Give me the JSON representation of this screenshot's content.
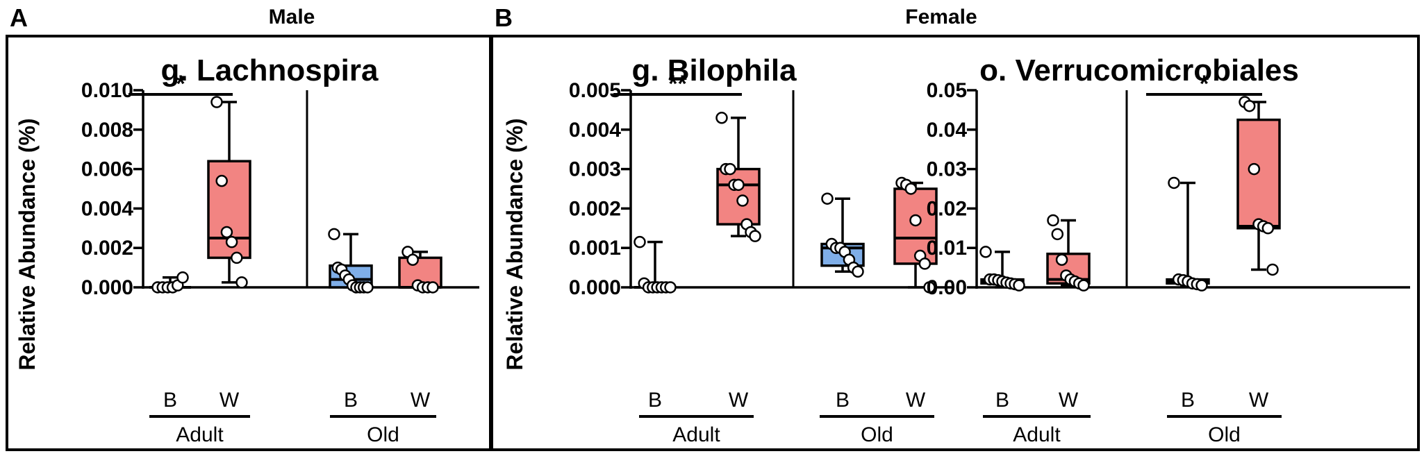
{
  "panels": [
    {
      "letter": "A",
      "group": "Male"
    },
    {
      "letter": "B",
      "group": "Female"
    }
  ],
  "colors": {
    "B": "#7faee8",
    "W": "#f28482",
    "stroke": "#000000"
  },
  "chart_data": [
    {
      "type": "box",
      "title": "g. Lachnospira",
      "ylabel": "Relative Abundance (%)",
      "ylim": [
        0,
        0.01
      ],
      "yticks": [
        "0.000",
        "0.002",
        "0.004",
        "0.006",
        "0.008",
        "0.010"
      ],
      "categories": [
        "B",
        "W"
      ],
      "groups": [
        {
          "name": "Adult",
          "boxes": [
            {
              "category": "B",
              "min": 0.0,
              "q1": 0.0,
              "median": 0.0,
              "q3": 0.0,
              "max": 0.0005,
              "points": [
                0.0,
                0.0,
                0.0,
                0.0,
                0.0001,
                0.0005
              ]
            },
            {
              "category": "W",
              "min": 0.00025,
              "q1": 0.0015,
              "median": 0.0025,
              "q3": 0.0064,
              "max": 0.0094,
              "points": [
                0.0094,
                0.0054,
                0.0028,
                0.0023,
                0.0015,
                0.00025
              ]
            }
          ],
          "significance": [
            {
              "label": "*",
              "from": "B",
              "to": "W"
            }
          ]
        },
        {
          "name": "Old",
          "boxes": [
            {
              "category": "B",
              "min": 0.0,
              "q1": 0.0,
              "median": 0.0004,
              "q3": 0.0011,
              "max": 0.0027,
              "points": [
                0.0027,
                0.001,
                0.0009,
                0.0006,
                0.0004,
                0.0001,
                0.0,
                0.0,
                0.0,
                0.0
              ]
            },
            {
              "category": "W",
              "min": 0.0,
              "q1": 0.0,
              "median": 0.0,
              "q3": 0.0015,
              "max": 0.0018,
              "points": [
                0.0018,
                0.0014,
                0.0001,
                0.0,
                0.0,
                0.0
              ]
            }
          ],
          "significance": []
        }
      ]
    },
    {
      "type": "box",
      "title": "g. Bilophila",
      "ylabel": "Relative Abundance (%)",
      "ylim": [
        0,
        0.005
      ],
      "yticks": [
        "0.000",
        "0.001",
        "0.002",
        "0.003",
        "0.004",
        "0.005"
      ],
      "categories": [
        "B",
        "W"
      ],
      "groups": [
        {
          "name": "Adult",
          "boxes": [
            {
              "category": "B",
              "min": 0.0,
              "q1": 0.0,
              "median": 0.0,
              "q3": 0.0,
              "max": 0.00115,
              "points": [
                0.00115,
                0.0001,
                0.0,
                0.0,
                0.0,
                0.0,
                0.0,
                0.0
              ]
            },
            {
              "category": "W",
              "min": 0.0013,
              "q1": 0.0016,
              "median": 0.0026,
              "q3": 0.003,
              "max": 0.0043,
              "points": [
                0.0043,
                0.003,
                0.003,
                0.0026,
                0.0026,
                0.0022,
                0.0016,
                0.0014,
                0.0013
              ]
            }
          ],
          "significance": [
            {
              "label": "**",
              "from": "B",
              "to": "W"
            }
          ]
        },
        {
          "name": "Old",
          "boxes": [
            {
              "category": "B",
              "min": 0.0004,
              "q1": 0.00055,
              "median": 0.001,
              "q3": 0.0011,
              "max": 0.00225,
              "points": [
                0.00225,
                0.0011,
                0.001,
                0.001,
                0.0009,
                0.0007,
                0.0005,
                0.0004
              ]
            },
            {
              "category": "W",
              "min": 0.0,
              "q1": 0.0006,
              "median": 0.00125,
              "q3": 0.0025,
              "max": 0.00265,
              "points": [
                0.00265,
                0.0026,
                0.0025,
                0.0017,
                0.0008,
                0.0006,
                0.0
              ]
            }
          ],
          "significance": []
        }
      ]
    },
    {
      "type": "box",
      "title": "o. Verrucomicrobiales",
      "ylabel": "",
      "ylim": [
        0,
        0.05
      ],
      "yticks": [
        "0.00",
        "0.01",
        "0.02",
        "0.03",
        "0.04",
        "0.05"
      ],
      "categories": [
        "B",
        "W"
      ],
      "groups": [
        {
          "name": "Adult",
          "boxes": [
            {
              "category": "B",
              "min": 0.0,
              "q1": 0.001,
              "median": 0.0015,
              "q3": 0.002,
              "max": 0.009,
              "points": [
                0.009,
                0.002,
                0.002,
                0.0018,
                0.0015,
                0.0012,
                0.001,
                0.0008,
                0.0005
              ]
            },
            {
              "category": "W",
              "min": 0.0005,
              "q1": 0.001,
              "median": 0.002,
              "q3": 0.0085,
              "max": 0.017,
              "points": [
                0.017,
                0.0135,
                0.007,
                0.003,
                0.002,
                0.0015,
                0.001,
                0.0005
              ]
            }
          ],
          "significance": []
        },
        {
          "name": "Old",
          "boxes": [
            {
              "category": "B",
              "min": 0.0005,
              "q1": 0.001,
              "median": 0.0015,
              "q3": 0.002,
              "max": 0.0265,
              "points": [
                0.0265,
                0.002,
                0.0018,
                0.0015,
                0.001,
                0.0008,
                0.0005
              ]
            },
            {
              "category": "W",
              "min": 0.0045,
              "q1": 0.015,
              "median": 0.0155,
              "q3": 0.0425,
              "max": 0.047,
              "points": [
                0.047,
                0.046,
                0.03,
                0.016,
                0.0155,
                0.015,
                0.0045
              ]
            }
          ],
          "significance": [
            {
              "label": "*",
              "from": "B",
              "to": "W"
            }
          ]
        }
      ]
    }
  ]
}
